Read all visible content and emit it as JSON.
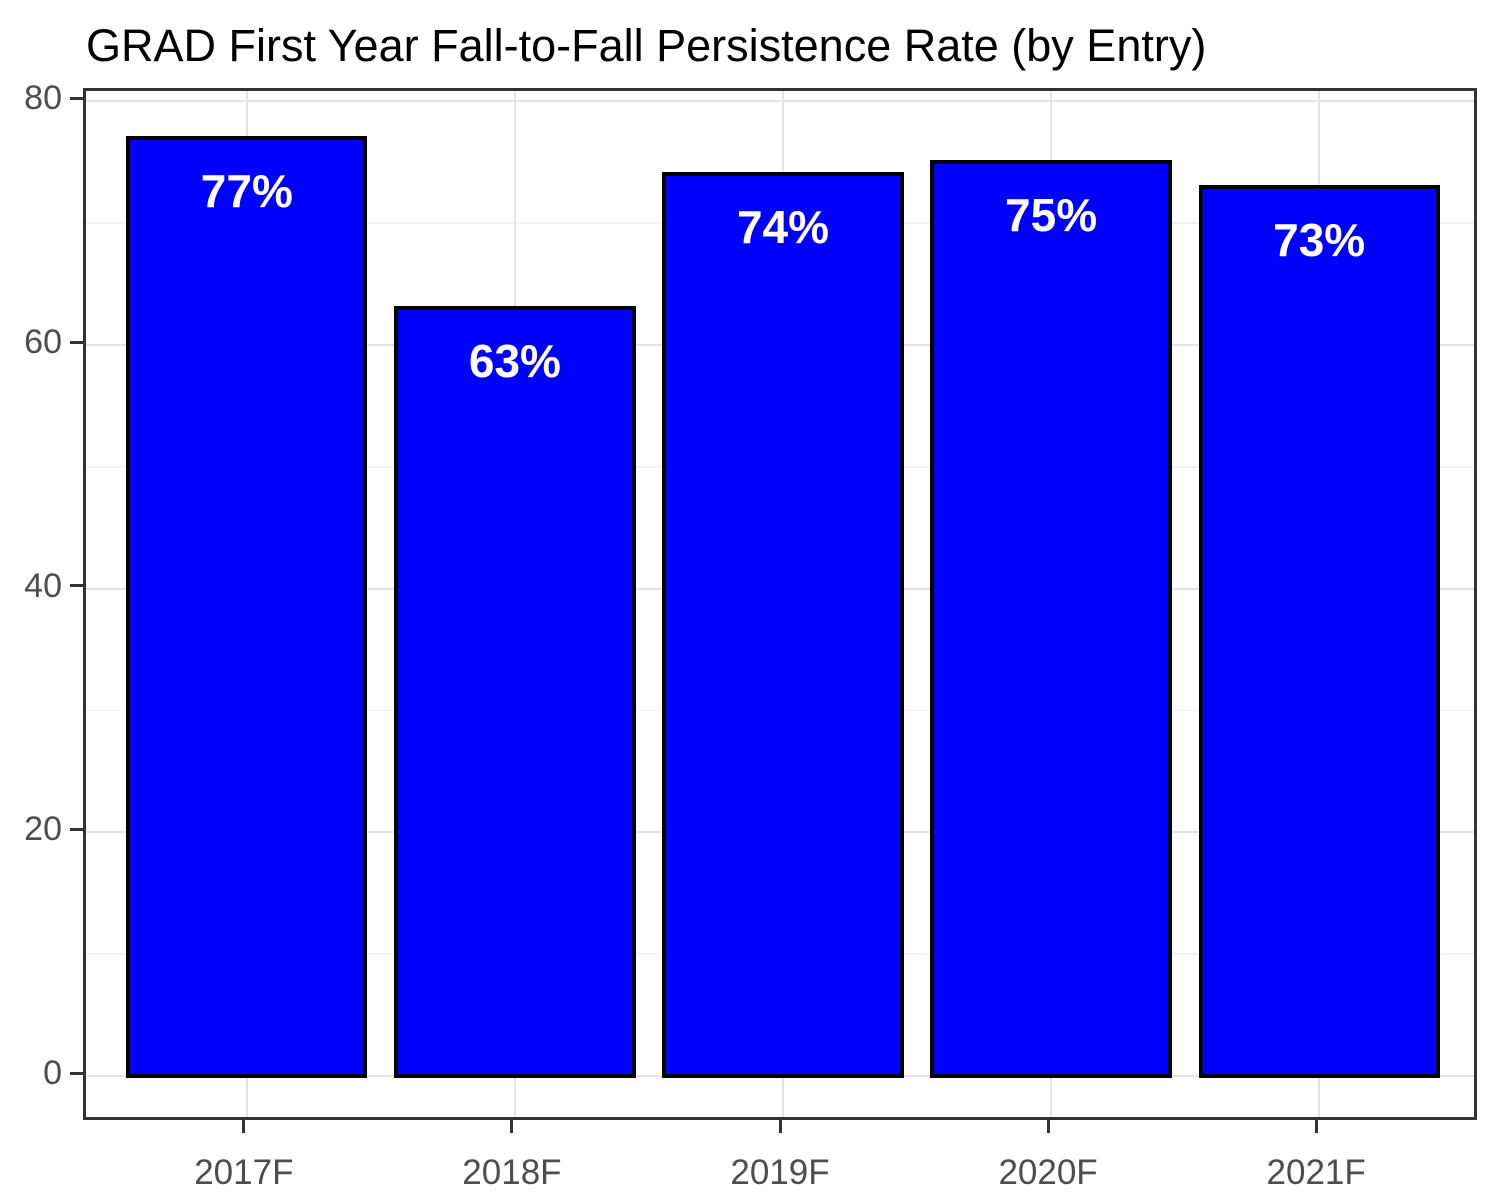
{
  "title": "GRAD First Year Fall-to-Fall Persistence Rate (by Entry)",
  "chart_data": {
    "type": "bar",
    "title": "GRAD First Year Fall-to-Fall Persistence Rate (by Entry)",
    "categories": [
      "2017F",
      "2018F",
      "2019F",
      "2020F",
      "2021F"
    ],
    "values": [
      77,
      63,
      74,
      75,
      73
    ],
    "bar_labels": [
      "77%",
      "63%",
      "74%",
      "75%",
      "73%"
    ],
    "xlabel": "",
    "ylabel": "",
    "ylim": [
      0,
      80
    ],
    "y_ticks": [
      0,
      20,
      40,
      60,
      80
    ],
    "y_minor_ticks": [
      10,
      30,
      50,
      70
    ],
    "grid": "on",
    "legend": "none",
    "colors": {
      "bar_fill": "#0000ff",
      "bar_stroke": "#000000",
      "bar_label_text": "#ffffff",
      "axis_text": "#4d4d4d",
      "panel_border": "#333333",
      "grid_major": "#e4e4e4",
      "grid_minor": "#f2f2f2",
      "background": "#ffffff"
    }
  }
}
